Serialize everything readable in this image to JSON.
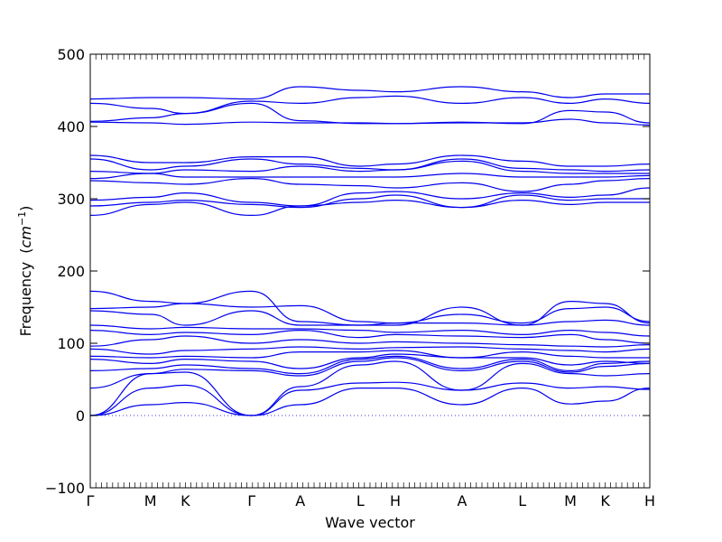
{
  "chart_data": {
    "type": "line",
    "title": "",
    "xlabel": "Wave vector",
    "ylabel_text": "Frequency",
    "ylabel_unit_base": "cm",
    "ylabel_unit_exp": "−1",
    "ylim": [
      -100,
      500
    ],
    "yticks": [
      "−100",
      "0",
      "100",
      "200",
      "300",
      "400",
      "500"
    ],
    "ytick_values": [
      -100,
      0,
      100,
      200,
      300,
      400,
      500
    ],
    "xlim": [
      0,
      9.3
    ],
    "kpoints": [
      {
        "label": "Γ",
        "x": 0
      },
      {
        "label": "M",
        "x": 1.0
      },
      {
        "label": "K",
        "x": 1.58
      },
      {
        "label": "Γ",
        "x": 2.68
      },
      {
        "label": "A",
        "x": 3.49
      },
      {
        "label": "L",
        "x": 4.49
      },
      {
        "label": "H",
        "x": 5.07
      },
      {
        "label": "A",
        "x": 6.18
      },
      {
        "label": "L",
        "x": 7.18
      },
      {
        "label": "M",
        "x": 7.98
      },
      {
        "label": "K",
        "x": 8.56
      },
      {
        "label": "H",
        "x": 9.3
      }
    ],
    "zero_line": 0,
    "line_color": "#0000ee",
    "zero_line_color": "#3b3bd9",
    "series": [
      {
        "values": [
          0,
          15,
          18,
          0,
          15,
          38,
          38,
          15,
          38,
          16,
          20,
          38
        ]
      },
      {
        "values": [
          0,
          38,
          42,
          0,
          35,
          45,
          46,
          35,
          45,
          38,
          40,
          36
        ]
      },
      {
        "values": [
          0,
          58,
          60,
          0,
          40,
          70,
          75,
          35,
          72,
          58,
          55,
          58
        ]
      },
      {
        "values": [
          38,
          58,
          64,
          62,
          55,
          75,
          80,
          62,
          75,
          60,
          68,
          72
        ]
      },
      {
        "values": [
          62,
          65,
          70,
          65,
          58,
          78,
          82,
          65,
          78,
          62,
          72,
          75
        ]
      },
      {
        "values": [
          78,
          72,
          78,
          75,
          65,
          80,
          85,
          80,
          80,
          70,
          75,
          72
        ]
      },
      {
        "values": [
          82,
          80,
          82,
          80,
          88,
          88,
          90,
          80,
          88,
          82,
          80,
          80
        ]
      },
      {
        "values": [
          92,
          85,
          90,
          92,
          95,
          92,
          94,
          95,
          92,
          90,
          88,
          92
        ]
      },
      {
        "values": [
          96,
          105,
          110,
          100,
          105,
          100,
          102,
          100,
          98,
          96,
          95,
          98
        ]
      },
      {
        "values": [
          118,
          112,
          115,
          112,
          118,
          108,
          112,
          110,
          108,
          112,
          105,
          100
        ]
      },
      {
        "values": [
          125,
          120,
          122,
          120,
          120,
          118,
          115,
          118,
          112,
          118,
          115,
          110
        ]
      },
      {
        "values": [
          145,
          140,
          125,
          145,
          125,
          125,
          128,
          128,
          125,
          130,
          132,
          125
        ]
      },
      {
        "values": [
          148,
          150,
          155,
          150,
          152,
          130,
          128,
          140,
          128,
          148,
          150,
          130
        ]
      },
      {
        "values": [
          172,
          158,
          155,
          172,
          130,
          125,
          125,
          150,
          125,
          158,
          155,
          128
        ]
      },
      {
        "values": [
          277,
          292,
          295,
          277,
          290,
          295,
          298,
          288,
          298,
          292,
          295,
          295
        ]
      },
      {
        "values": [
          290,
          295,
          298,
          292,
          288,
          300,
          305,
          288,
          305,
          298,
          300,
          300
        ]
      },
      {
        "values": [
          298,
          302,
          308,
          295,
          290,
          308,
          310,
          300,
          308,
          302,
          305,
          315
        ]
      },
      {
        "values": [
          325,
          322,
          320,
          328,
          320,
          318,
          315,
          322,
          310,
          320,
          325,
          328
        ]
      },
      {
        "values": [
          328,
          335,
          330,
          330,
          330,
          330,
          330,
          335,
          330,
          330,
          330,
          332
        ]
      },
      {
        "values": [
          338,
          335,
          340,
          338,
          345,
          338,
          340,
          352,
          338,
          335,
          335,
          335
        ]
      },
      {
        "values": [
          355,
          340,
          345,
          355,
          348,
          342,
          340,
          355,
          342,
          340,
          338,
          340
        ]
      },
      {
        "values": [
          360,
          350,
          350,
          358,
          358,
          345,
          348,
          360,
          352,
          345,
          345,
          348
        ]
      },
      {
        "values": [
          406,
          405,
          403,
          406,
          405,
          405,
          404,
          405,
          405,
          410,
          405,
          402
        ]
      },
      {
        "values": [
          407,
          412,
          418,
          432,
          408,
          404,
          404,
          406,
          404,
          422,
          420,
          405
        ]
      },
      {
        "values": [
          432,
          425,
          418,
          435,
          432,
          440,
          442,
          432,
          440,
          432,
          438,
          432
        ]
      },
      {
        "values": [
          438,
          440,
          440,
          438,
          455,
          450,
          448,
          455,
          448,
          440,
          445,
          445
        ]
      }
    ]
  }
}
